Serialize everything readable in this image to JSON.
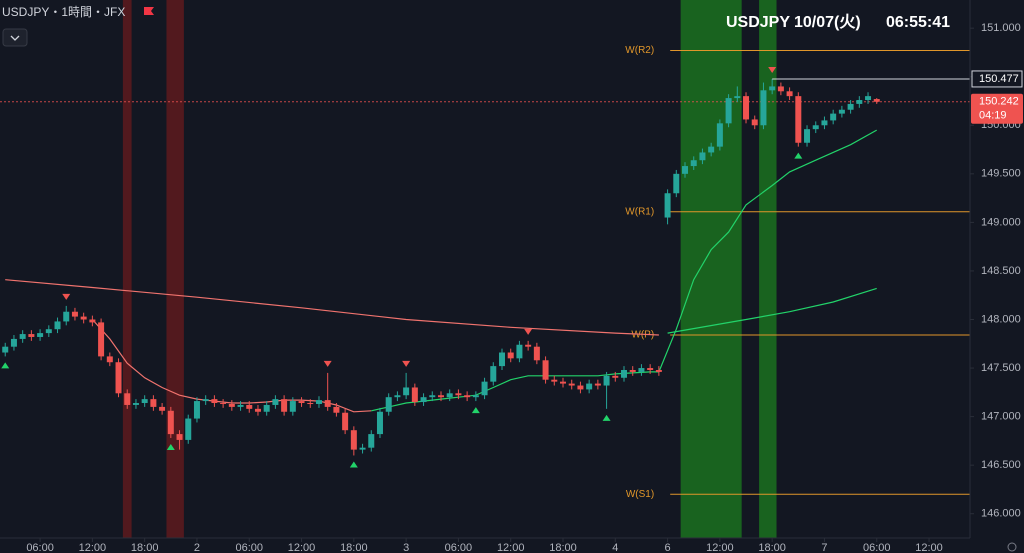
{
  "chart_data": {
    "type": "candlestick",
    "symbol_line": "USDJPY・1時間・JFX",
    "clock": {
      "symbol": "USDJPY",
      "date": "10/07(火)",
      "time": "06:55:41"
    },
    "up_color": "#26a69a",
    "down_color": "#ef5350",
    "xlim": [
      -0.6,
      110.7
    ],
    "xticks": [
      {
        "value": 4,
        "label": "06:00"
      },
      {
        "value": 10,
        "label": "12:00"
      },
      {
        "value": 16,
        "label": "18:00"
      },
      {
        "value": 22,
        "label": "2"
      },
      {
        "value": 28,
        "label": "06:00"
      },
      {
        "value": 34,
        "label": "12:00"
      },
      {
        "value": 40,
        "label": "18:00"
      },
      {
        "value": 46,
        "label": "3"
      },
      {
        "value": 52,
        "label": "06:00"
      },
      {
        "value": 58,
        "label": "12:00"
      },
      {
        "value": 64,
        "label": "18:00"
      },
      {
        "value": 70,
        "label": "4"
      },
      {
        "value": 76,
        "label": "6"
      },
      {
        "value": 82,
        "label": "12:00"
      },
      {
        "value": 88,
        "label": "18:00"
      },
      {
        "value": 94,
        "label": "7"
      },
      {
        "value": 100,
        "label": "06:00"
      },
      {
        "value": 106,
        "label": "12:00"
      }
    ],
    "ylim": [
      145.75,
      151.29
    ],
    "yticks": [
      {
        "value": 146,
        "label": "146.000"
      },
      {
        "value": 146.5,
        "label": "146.500"
      },
      {
        "value": 147,
        "label": "147.000"
      },
      {
        "value": 147.5,
        "label": "147.500"
      },
      {
        "value": 148,
        "label": "148.000"
      },
      {
        "value": 148.5,
        "label": "148.500"
      },
      {
        "value": 149,
        "label": "149.000"
      },
      {
        "value": 149.5,
        "label": "149.500"
      },
      {
        "value": 150,
        "label": "150.000"
      },
      {
        "value": 150.5,
        "label": "150.500"
      },
      {
        "value": 151,
        "label": "151.000"
      }
    ],
    "open": [
      147.66,
      147.72,
      147.8,
      147.85,
      147.82,
      147.86,
      147.9,
      147.98,
      148.08,
      148.03,
      148.0,
      147.97,
      147.62,
      147.56,
      147.24,
      147.12,
      147.14,
      147.18,
      147.1,
      147.06,
      146.82,
      146.76,
      146.98,
      147.16,
      147.18,
      147.14,
      147.13,
      147.1,
      147.12,
      147.08,
      147.05,
      147.12,
      147.18,
      147.05,
      147.16,
      147.14,
      147.13,
      147.17,
      147.1,
      147.04,
      146.86,
      146.66,
      146.68,
      146.82,
      147.05,
      147.2,
      147.22,
      147.3,
      147.15,
      147.2,
      147.22,
      147.2,
      147.24,
      147.22,
      147.2,
      147.22,
      147.36,
      147.52,
      147.66,
      147.6,
      147.74,
      147.72,
      147.58,
      147.38,
      147.36,
      147.34,
      147.32,
      147.28,
      147.34,
      147.32,
      147.42,
      147.4,
      147.48,
      147.46,
      147.5,
      147.48,
      149.05,
      149.3,
      149.5,
      149.58,
      149.64,
      149.72,
      149.78,
      150.02,
      150.28,
      150.3,
      150.06,
      150.0,
      150.36,
      150.4,
      150.35,
      150.3,
      149.82,
      149.96,
      150.0,
      150.05,
      150.12,
      150.16,
      150.22,
      150.26,
      150.27
    ],
    "high": [
      147.76,
      147.84,
      147.89,
      147.89,
      147.9,
      147.94,
      148.02,
      148.14,
      148.12,
      148.07,
      148.04,
      148.01,
      147.66,
      147.6,
      147.28,
      147.18,
      147.22,
      147.22,
      147.14,
      147.1,
      146.86,
      147.02,
      147.2,
      147.22,
      147.22,
      147.18,
      147.17,
      147.16,
      147.16,
      147.12,
      147.16,
      147.22,
      147.22,
      147.2,
      147.2,
      147.18,
      147.21,
      147.45,
      147.14,
      147.08,
      146.9,
      146.72,
      146.86,
      147.09,
      147.24,
      147.26,
      147.45,
      147.34,
      147.24,
      147.26,
      147.26,
      147.28,
      147.28,
      147.26,
      147.26,
      147.4,
      147.56,
      147.7,
      147.7,
      147.78,
      147.78,
      147.76,
      147.62,
      147.42,
      147.4,
      147.38,
      147.36,
      147.38,
      147.38,
      147.46,
      147.46,
      147.52,
      147.52,
      147.54,
      147.54,
      147.52,
      149.34,
      149.54,
      149.62,
      149.68,
      149.76,
      149.82,
      150.06,
      150.32,
      150.4,
      150.34,
      150.1,
      150.44,
      150.477,
      150.44,
      150.39,
      150.34,
      150.0,
      150.04,
      150.09,
      150.16,
      150.2,
      150.26,
      150.3,
      150.34,
      150.28
    ],
    "low": [
      147.62,
      147.68,
      147.76,
      147.78,
      147.78,
      147.82,
      147.86,
      147.94,
      147.99,
      147.96,
      147.93,
      147.58,
      147.52,
      147.2,
      147.08,
      147.08,
      147.1,
      147.06,
      147.02,
      146.78,
      146.66,
      146.72,
      146.94,
      147.12,
      147.1,
      147.09,
      147.06,
      147.06,
      147.04,
      147.01,
      147.01,
      147.08,
      147.01,
      147.01,
      147.1,
      147.09,
      147.09,
      147.06,
      147.0,
      146.82,
      146.6,
      146.62,
      146.64,
      146.78,
      147.01,
      147.16,
      147.18,
      147.11,
      147.11,
      147.16,
      147.16,
      147.16,
      147.18,
      147.16,
      147.16,
      147.18,
      147.32,
      147.48,
      147.56,
      147.56,
      147.68,
      147.54,
      147.34,
      147.32,
      147.3,
      147.28,
      147.24,
      147.24,
      147.28,
      147.08,
      147.36,
      147.36,
      147.42,
      147.42,
      147.44,
      147.42,
      148.98,
      149.26,
      149.46,
      149.54,
      149.6,
      149.68,
      149.74,
      149.98,
      150.24,
      150.02,
      149.96,
      149.96,
      150.32,
      150.31,
      150.26,
      149.78,
      149.78,
      149.92,
      149.96,
      150.01,
      150.08,
      150.12,
      150.18,
      150.22,
      150.22
    ],
    "close": [
      147.72,
      147.8,
      147.85,
      147.82,
      147.86,
      147.9,
      147.98,
      148.08,
      148.03,
      148.0,
      147.97,
      147.62,
      147.56,
      147.24,
      147.12,
      147.14,
      147.18,
      147.1,
      147.06,
      146.82,
      146.76,
      146.98,
      147.16,
      147.18,
      147.14,
      147.13,
      147.1,
      147.12,
      147.08,
      147.05,
      147.12,
      147.18,
      147.05,
      147.16,
      147.14,
      147.13,
      147.17,
      147.1,
      147.04,
      146.86,
      146.66,
      146.68,
      146.82,
      147.05,
      147.2,
      147.22,
      147.3,
      147.15,
      147.2,
      147.22,
      147.2,
      147.24,
      147.22,
      147.2,
      147.22,
      147.36,
      147.52,
      147.66,
      147.6,
      147.74,
      147.72,
      147.58,
      147.38,
      147.36,
      147.34,
      147.32,
      147.28,
      147.34,
      147.32,
      147.42,
      147.4,
      147.48,
      147.46,
      147.5,
      147.48,
      147.46,
      149.3,
      149.5,
      149.58,
      149.64,
      149.72,
      149.78,
      150.02,
      150.28,
      150.3,
      150.06,
      150.0,
      150.36,
      150.4,
      150.35,
      150.3,
      149.82,
      149.96,
      150.0,
      150.05,
      150.12,
      150.16,
      150.22,
      150.26,
      150.3,
      150.242
    ],
    "bands": [
      {
        "from": 14,
        "to": 14,
        "color": "#5a1a1e"
      },
      {
        "from": 19,
        "to": 20,
        "color": "#5a1a1e"
      },
      {
        "from": 78,
        "to": 84,
        "color": "#1b6b1f"
      },
      {
        "from": 87,
        "to": 88,
        "color": "#1b6b1f"
      }
    ],
    "overlays": [
      {
        "color": "#f0736e",
        "x": [
          0,
          10,
          22,
          34,
          46,
          58,
          70,
          75
        ],
        "values": [
          148.41,
          148.33,
          148.23,
          148.12,
          148.0,
          147.92,
          147.86,
          147.84
        ]
      },
      {
        "color": "#22d36a",
        "x": [
          76,
          85,
          90,
          95,
          100
        ],
        "values": [
          147.86,
          148.0,
          148.08,
          148.18,
          148.32
        ]
      },
      {
        "color": "#f0736e",
        "x": [
          10,
          12,
          14,
          16,
          18,
          20,
          22,
          24,
          26,
          28,
          30,
          32,
          34,
          36,
          38,
          40,
          42
        ],
        "values": [
          148.0,
          147.8,
          147.55,
          147.4,
          147.3,
          147.22,
          147.18,
          147.16,
          147.14,
          147.14,
          147.15,
          147.17,
          147.17,
          147.16,
          147.12,
          147.05,
          147.06
        ]
      },
      {
        "color": "#22d36a",
        "x": [
          42,
          44,
          46,
          48,
          50,
          52,
          54,
          56,
          58,
          60,
          62,
          64,
          66,
          68,
          70,
          72,
          74,
          75,
          77,
          79,
          81,
          83,
          85,
          88,
          90,
          93,
          97,
          100
        ],
        "values": [
          147.06,
          147.1,
          147.14,
          147.16,
          147.18,
          147.2,
          147.22,
          147.3,
          147.38,
          147.42,
          147.42,
          147.42,
          147.42,
          147.42,
          147.44,
          147.45,
          147.46,
          147.46,
          147.9,
          148.41,
          148.72,
          148.9,
          149.18,
          149.38,
          149.52,
          149.64,
          149.8,
          149.95
        ]
      }
    ],
    "pivot_from": 76.3,
    "pivot_color": "#e0962a",
    "pivots": [
      {
        "label": "W(R2)",
        "value": 150.77
      },
      {
        "label": "W(R1)",
        "value": 149.11
      },
      {
        "label": "W(P)",
        "value": 147.84
      },
      {
        "label": "W(S1)",
        "value": 146.2
      }
    ],
    "signals": [
      {
        "i": 7,
        "dir": "down"
      },
      {
        "i": 37,
        "dir": "down"
      },
      {
        "i": 46,
        "dir": "down"
      },
      {
        "i": 60,
        "dir": "down"
      },
      {
        "i": 88,
        "dir": "down"
      },
      {
        "i": 0,
        "dir": "up"
      },
      {
        "i": 19,
        "dir": "up"
      },
      {
        "i": 40,
        "dir": "up"
      },
      {
        "i": 54,
        "dir": "up"
      },
      {
        "i": 69,
        "dir": "up"
      },
      {
        "i": 91,
        "dir": "up"
      }
    ],
    "high_marker": 150.477,
    "last_price": 150.242,
    "countdown": "04:19"
  }
}
